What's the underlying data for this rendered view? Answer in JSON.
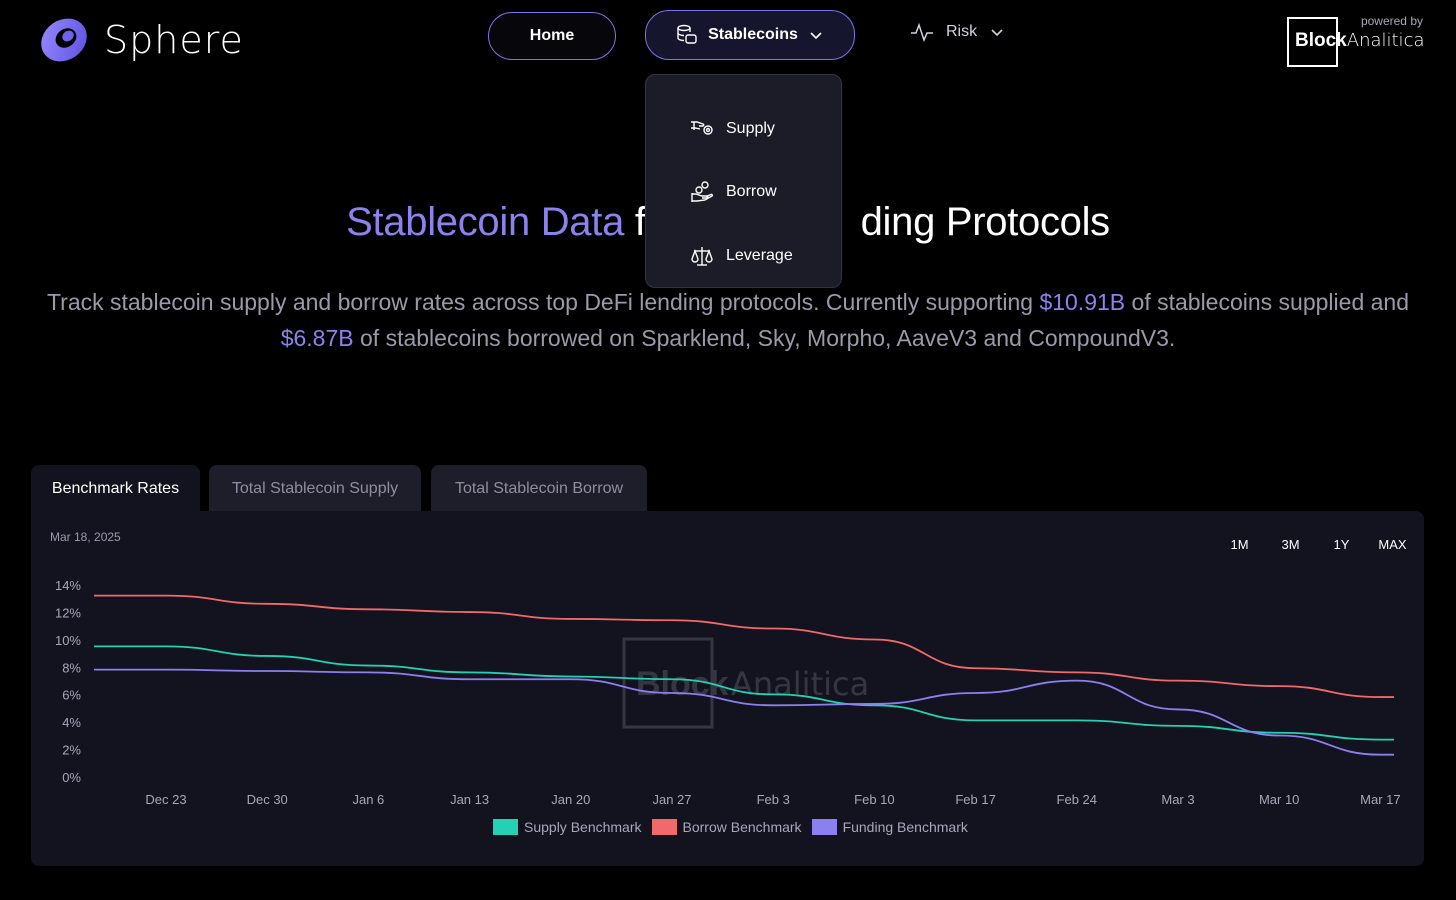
{
  "brand": {
    "name": "Sphere"
  },
  "nav": {
    "home_label": "Home",
    "stablecoins_label": "Stablecoins",
    "risk_label": "Risk"
  },
  "powered": {
    "by_label": "powered by",
    "name_bold": "Block",
    "name_light": "Analitica"
  },
  "dropdown": {
    "items": [
      {
        "label": "Supply",
        "icon": "hand-coins-icon"
      },
      {
        "label": "Borrow",
        "icon": "hand-borrow-icon"
      },
      {
        "label": "Leverage",
        "icon": "scale-icon"
      }
    ]
  },
  "hero": {
    "title_highlight": "Stablecoin Data",
    "title_rest_before": " fro",
    "title_rest_after": "ding Protocols",
    "desc_part1": "Track stablecoin supply and borrow rates across top DeFi lending protocols. Currently supporting ",
    "supplied_amount": "$10.91B",
    "desc_part2": " of stablecoins supplied and ",
    "borrowed_amount": "$6.87B",
    "desc_part3": " of stablecoins borrowed on Sparklend, Sky, Morpho, AaveV3 and CompoundV3."
  },
  "tabs": [
    {
      "label": "Benchmark Rates",
      "active": true
    },
    {
      "label": "Total Stablecoin Supply",
      "active": false
    },
    {
      "label": "Total Stablecoin Borrow",
      "active": false
    }
  ],
  "panel": {
    "date": "Mar 18, 2025",
    "ranges": [
      "1M",
      "3M",
      "1Y",
      "MAX"
    ],
    "watermark_bold": "Block",
    "watermark_light": "Analitica"
  },
  "chart_data": {
    "type": "line",
    "x": [
      "Dec 23",
      "Dec 30",
      "Jan 6",
      "Jan 13",
      "Jan 20",
      "Jan 27",
      "Feb 3",
      "Feb 10",
      "Feb 17",
      "Feb 24",
      "Mar 3",
      "Mar 10",
      "Mar 17"
    ],
    "yticks": [
      "0%",
      "2%",
      "4%",
      "6%",
      "8%",
      "10%",
      "12%",
      "14%"
    ],
    "ylim": [
      0,
      14
    ],
    "series": [
      {
        "name": "Supply Benchmark",
        "color": "#23d1b4",
        "values": [
          9.6,
          8.9,
          8.2,
          7.7,
          7.4,
          7.2,
          6.1,
          5.3,
          4.2,
          4.2,
          3.8,
          3.3,
          2.8
        ]
      },
      {
        "name": "Borrow Benchmark",
        "color": "#f06a6a",
        "values": [
          13.3,
          12.7,
          12.3,
          12.1,
          11.6,
          11.5,
          10.9,
          10.1,
          8.0,
          7.7,
          7.1,
          6.7,
          5.9
        ]
      },
      {
        "name": "Funding Benchmark",
        "color": "#8b80f0",
        "values": [
          7.9,
          7.8,
          7.7,
          7.2,
          7.2,
          6.2,
          5.3,
          5.4,
          6.2,
          7.1,
          5.0,
          3.1,
          1.7
        ]
      }
    ],
    "legend_position": "bottom",
    "grid": false
  }
}
